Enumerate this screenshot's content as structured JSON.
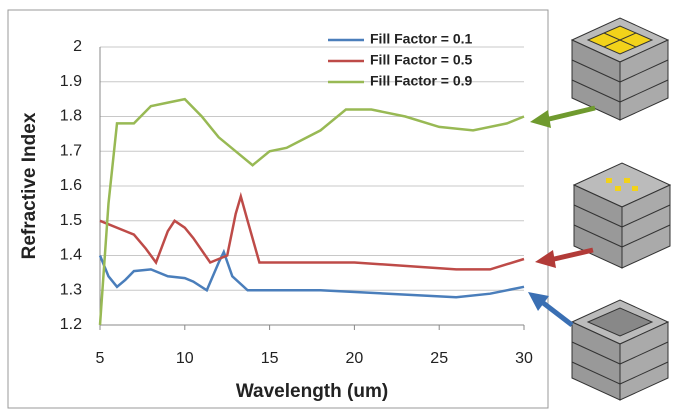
{
  "chart_data": {
    "type": "line",
    "x_label": "Wavelength (um)",
    "y_label": "Refractive Index",
    "xlim": [
      5,
      30
    ],
    "ylim": [
      1.2,
      2
    ],
    "xticks": [
      5,
      10,
      15,
      20,
      25,
      30
    ],
    "yticks": [
      1.2,
      1.3,
      1.4,
      1.5,
      1.6,
      1.7,
      1.8,
      1.9,
      2
    ],
    "grid": true,
    "legend": "top-right",
    "series": [
      {
        "name": "Fill Factor = 0.1",
        "color": "#4a7ebb",
        "x": [
          5,
          5.5,
          6,
          6.5,
          7,
          8,
          9,
          10,
          10.5,
          11.3,
          12,
          12.3,
          12.8,
          13.7,
          15,
          18,
          22,
          26,
          28,
          30
        ],
        "values": [
          1.4,
          1.34,
          1.31,
          1.33,
          1.355,
          1.36,
          1.34,
          1.335,
          1.325,
          1.3,
          1.38,
          1.41,
          1.34,
          1.3,
          1.3,
          1.3,
          1.29,
          1.28,
          1.29,
          1.31
        ]
      },
      {
        "name": "Fill Factor = 0.5",
        "color": "#be4b48",
        "x": [
          5,
          7,
          7.7,
          8.3,
          9,
          9.4,
          10,
          10.5,
          11.5,
          12.5,
          13,
          13.3,
          13.7,
          14.4,
          15,
          20,
          26,
          28,
          30
        ],
        "values": [
          1.5,
          1.46,
          1.42,
          1.38,
          1.47,
          1.5,
          1.48,
          1.45,
          1.38,
          1.4,
          1.52,
          1.57,
          1.5,
          1.38,
          1.38,
          1.38,
          1.36,
          1.36,
          1.39
        ]
      },
      {
        "name": "Fill Factor = 0.9",
        "color": "#98b954",
        "x": [
          5,
          5.5,
          6,
          7,
          8,
          9,
          10,
          11,
          12,
          13,
          14,
          15,
          16,
          18,
          19.5,
          21,
          23,
          25,
          27,
          29,
          30
        ],
        "values": [
          1.2,
          1.55,
          1.78,
          1.78,
          1.83,
          1.84,
          1.85,
          1.8,
          1.74,
          1.7,
          1.66,
          1.7,
          1.71,
          1.76,
          1.82,
          1.82,
          1.8,
          1.77,
          1.76,
          1.78,
          1.8
        ]
      }
    ]
  }
}
